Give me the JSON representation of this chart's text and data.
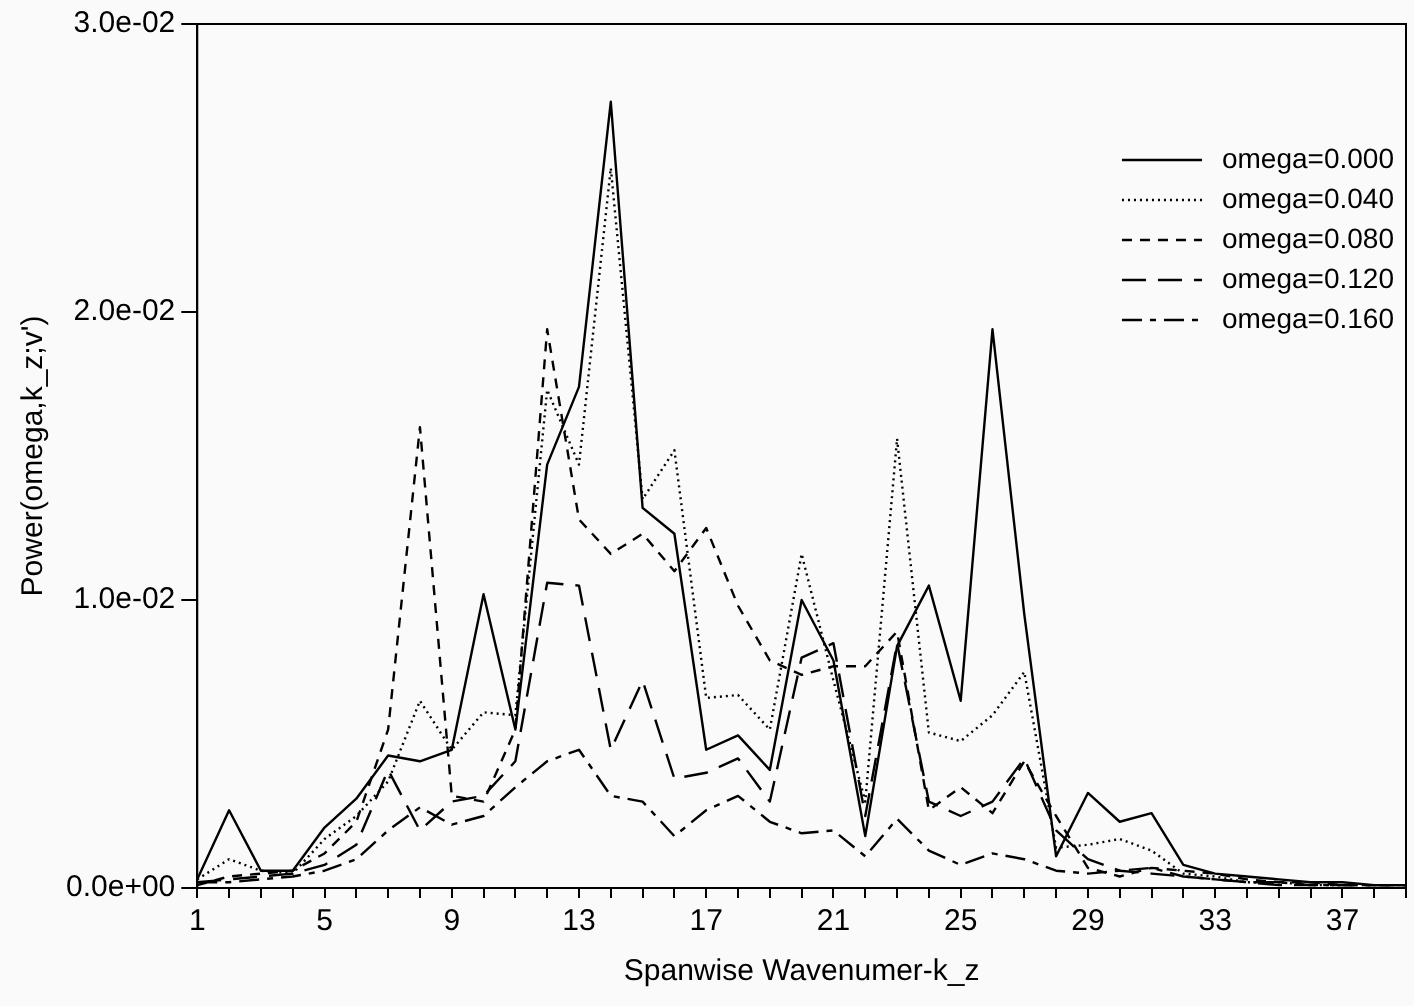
{
  "chart_data": {
    "type": "line",
    "xlabel": "Spanwise Wavenumer-k_z",
    "ylabel": "Power(omega,k_z;v')",
    "x": [
      1,
      2,
      3,
      4,
      5,
      6,
      7,
      8,
      9,
      10,
      11,
      12,
      13,
      14,
      15,
      16,
      17,
      18,
      19,
      20,
      21,
      22,
      23,
      24,
      25,
      26,
      27,
      28,
      29,
      30,
      31,
      32,
      33,
      34,
      35,
      36,
      37,
      38,
      39
    ],
    "series": [
      {
        "name": "omega=0.000",
        "color": "#000000",
        "line_style": "solid",
        "values": [
          0.0003,
          0.0027,
          0.0006,
          0.0006,
          0.0021,
          0.0031,
          0.0046,
          0.0044,
          0.0048,
          0.0102,
          0.0055,
          0.0147,
          0.0174,
          0.0273,
          0.0132,
          0.0123,
          0.0048,
          0.0053,
          0.0041,
          0.01,
          0.0079,
          0.0018,
          0.0084,
          0.0105,
          0.0065,
          0.0194,
          0.0095,
          0.0011,
          0.0033,
          0.0023,
          0.0026,
          0.0008,
          0.0005,
          0.0004,
          0.0003,
          0.0002,
          0.0002,
          0.0001,
          0.0001
        ]
      },
      {
        "name": "omega=0.040",
        "color": "#000000",
        "line_style": "dotted",
        "values": [
          0.0003,
          0.001,
          0.0006,
          0.0005,
          0.0017,
          0.0025,
          0.0037,
          0.0065,
          0.0048,
          0.0061,
          0.006,
          0.0173,
          0.0147,
          0.025,
          0.0135,
          0.0152,
          0.0066,
          0.0067,
          0.0055,
          0.0116,
          0.0072,
          0.003,
          0.0156,
          0.0054,
          0.0051,
          0.006,
          0.0075,
          0.0014,
          0.0015,
          0.0017,
          0.0013,
          0.0005,
          0.0004,
          0.0002,
          0.0002,
          0.0001,
          0.0001,
          0.0001,
          0.0001
        ]
      },
      {
        "name": "omega=0.080",
        "color": "#000000",
        "line_style": "dashed",
        "values": [
          0.0001,
          0.0004,
          0.0005,
          0.0006,
          0.0012,
          0.0023,
          0.0055,
          0.016,
          0.0032,
          0.003,
          0.0055,
          0.0194,
          0.0128,
          0.0116,
          0.0123,
          0.011,
          0.0125,
          0.0098,
          0.0079,
          0.0074,
          0.0077,
          0.0077,
          0.0089,
          0.0027,
          0.0035,
          0.0026,
          0.0044,
          0.0025,
          0.0007,
          0.0004,
          0.0007,
          0.0006,
          0.0005,
          0.0003,
          0.0002,
          0.0002,
          0.0001,
          0.0001,
          0.0001
        ]
      },
      {
        "name": "omega=0.120",
        "color": "#000000",
        "line_style": "dashed",
        "values": [
          0.0002,
          0.0003,
          0.0004,
          0.0005,
          0.0008,
          0.0015,
          0.0041,
          0.002,
          0.003,
          0.0032,
          0.0044,
          0.0106,
          0.0105,
          0.0048,
          0.0072,
          0.0038,
          0.004,
          0.0045,
          0.003,
          0.008,
          0.0085,
          0.0025,
          0.0085,
          0.003,
          0.0025,
          0.003,
          0.0045,
          0.002,
          0.001,
          0.0006,
          0.0005,
          0.0004,
          0.0003,
          0.0002,
          0.0001,
          0.0001,
          0.0001,
          0.0001,
          0.0001
        ]
      },
      {
        "name": "omega=0.160",
        "color": "#000000",
        "line_style": "dashed",
        "values": [
          0.0002,
          0.0002,
          0.0003,
          0.0004,
          0.0006,
          0.001,
          0.002,
          0.0028,
          0.0022,
          0.0025,
          0.0035,
          0.0044,
          0.0048,
          0.0032,
          0.003,
          0.0018,
          0.0027,
          0.0032,
          0.0023,
          0.0019,
          0.002,
          0.0011,
          0.0024,
          0.0013,
          0.0008,
          0.0012,
          0.001,
          0.0006,
          0.0005,
          0.0006,
          0.0007,
          0.0004,
          0.0003,
          0.0002,
          0.0002,
          0.0001,
          0.0001,
          0.0001,
          0.0001
        ]
      }
    ],
    "xlim": [
      1,
      39
    ],
    "xticks": [
      1,
      {
        "value": 2,
        "label": null
      },
      {
        "value": 3,
        "label": null
      },
      {
        "value": 4,
        "label": null
      },
      5,
      {
        "value": 6,
        "label": null
      },
      {
        "value": 7,
        "label": null
      },
      {
        "value": 8,
        "label": null
      },
      9,
      {
        "value": 10,
        "label": null
      },
      {
        "value": 11,
        "label": null
      },
      {
        "value": 12,
        "label": null
      },
      13,
      {
        "value": 14,
        "label": null
      },
      {
        "value": 15,
        "label": null
      },
      {
        "value": 16,
        "label": null
      },
      17,
      {
        "value": 18,
        "label": null
      },
      {
        "value": 19,
        "label": null
      },
      {
        "value": 20,
        "label": null
      },
      21,
      {
        "value": 22,
        "label": null
      },
      {
        "value": 23,
        "label": null
      },
      {
        "value": 24,
        "label": null
      },
      25,
      {
        "value": 26,
        "label": null
      },
      {
        "value": 27,
        "label": null
      },
      {
        "value": 28,
        "label": null
      },
      29,
      {
        "value": 30,
        "label": null
      },
      {
        "value": 31,
        "label": null
      },
      {
        "value": 32,
        "label": null
      },
      33,
      {
        "value": 34,
        "label": null
      },
      {
        "value": 35,
        "label": null
      },
      {
        "value": 36,
        "label": null
      },
      37,
      {
        "value": 38,
        "label": null
      },
      {
        "value": 39,
        "label": null
      }
    ],
    "ylim": [
      0,
      0.03
    ],
    "yticks": [
      {
        "value": 0,
        "label": "0.0e+00"
      },
      {
        "value": 0.01,
        "label": "1.0e-02"
      },
      {
        "value": 0.02,
        "label": "2.0e-02"
      },
      {
        "value": 0.03,
        "label": "3.0e-02"
      }
    ],
    "grid": false,
    "legend": "top right",
    "marker": "none"
  }
}
